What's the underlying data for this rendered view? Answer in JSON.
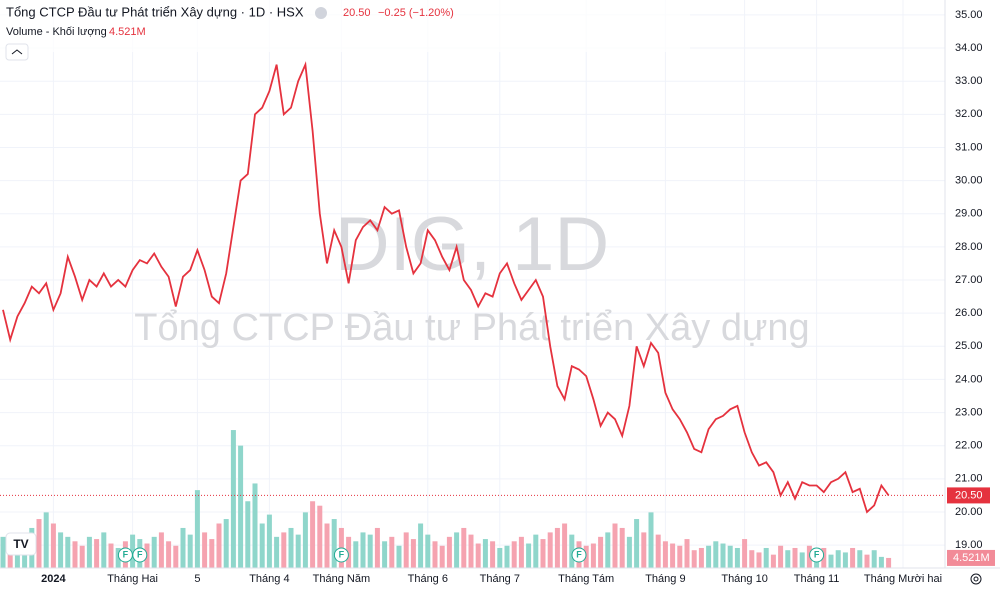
{
  "header": {
    "title": "Tổng CTCP Đầu tư Phát triển Xây dựng · 1D · HSX",
    "price": "20.50",
    "change": "−0.25 (−1.20%)",
    "volume_title": "Volume - Khối lượng",
    "last_volume": {
      "value": 4.521,
      "label": "4.521M"
    }
  },
  "watermark": {
    "symbol": "DIG, 1D",
    "name": "Tổng CTCP Đầu tư Phát triển Xây dựng"
  },
  "chart_data": {
    "type": "line",
    "color": "#e5323e",
    "grid": true,
    "ylim": [
      18.4,
      35.45
    ],
    "yticks": [
      {
        "value": 19,
        "label": "19.00"
      },
      {
        "value": 20,
        "label": "20.00"
      },
      {
        "value": 21,
        "label": "21.00"
      },
      {
        "value": 22,
        "label": "22.00"
      },
      {
        "value": 23,
        "label": "23.00"
      },
      {
        "value": 24,
        "label": "24.00"
      },
      {
        "value": 25,
        "label": "25.00"
      },
      {
        "value": 26,
        "label": "26.00"
      },
      {
        "value": 27,
        "label": "27.00"
      },
      {
        "value": 28,
        "label": "28.00"
      },
      {
        "value": 29,
        "label": "29.00"
      },
      {
        "value": 30,
        "label": "30.00"
      },
      {
        "value": 31,
        "label": "31.00"
      },
      {
        "value": 32,
        "label": "32.00"
      },
      {
        "value": 33,
        "label": "33.00"
      },
      {
        "value": 34,
        "label": "34.00"
      },
      {
        "value": 35,
        "label": "35.00"
      }
    ],
    "last_price": {
      "value": 20.5,
      "label": "20.50"
    },
    "categories": [
      null,
      null,
      null,
      null,
      null,
      null,
      null,
      "2024",
      null,
      null,
      null,
      null,
      null,
      null,
      null,
      null,
      null,
      null,
      "Tháng Hai",
      null,
      null,
      null,
      null,
      null,
      null,
      null,
      null,
      "5",
      null,
      null,
      null,
      null,
      null,
      null,
      null,
      null,
      null,
      "Tháng 4",
      null,
      null,
      null,
      null,
      null,
      null,
      null,
      null,
      null,
      "Tháng Năm",
      null,
      null,
      null,
      null,
      null,
      null,
      null,
      null,
      null,
      null,
      null,
      "Tháng 6",
      null,
      null,
      null,
      null,
      null,
      null,
      null,
      null,
      null,
      "Tháng 7",
      null,
      null,
      null,
      null,
      null,
      null,
      null,
      null,
      null,
      null,
      null,
      "Tháng Tám",
      null,
      null,
      null,
      null,
      null,
      null,
      null,
      null,
      null,
      null,
      "Tháng 9",
      null,
      null,
      null,
      null,
      null,
      null,
      null,
      null,
      null,
      null,
      "Tháng 10",
      null,
      null,
      null,
      null,
      null,
      null,
      null,
      null,
      null,
      "Tháng 11",
      null,
      null,
      null,
      null,
      null,
      null,
      null,
      null,
      null,
      null,
      null,
      "Tháng Mười hai",
      null,
      null,
      null,
      null
    ],
    "series": [
      {
        "name": "DIG",
        "color": "#e5323e",
        "values": [
          26.1,
          25.2,
          25.9,
          26.3,
          26.8,
          26.6,
          26.9,
          26.1,
          26.6,
          27.7,
          27.1,
          26.4,
          27.0,
          26.8,
          27.2,
          26.8,
          27.0,
          26.8,
          27.3,
          27.6,
          27.5,
          27.8,
          27.4,
          27.1,
          26.2,
          27.1,
          27.3,
          27.9,
          27.3,
          26.5,
          26.3,
          27.2,
          28.6,
          30.0,
          30.2,
          32.0,
          32.2,
          32.7,
          33.5,
          32.0,
          32.2,
          33.0,
          33.5,
          31.5,
          29.0,
          27.5,
          28.5,
          28.0,
          26.9,
          28.2,
          28.6,
          28.8,
          28.5,
          29.2,
          29.0,
          29.1,
          28.0,
          27.2,
          27.5,
          28.5,
          28.2,
          27.7,
          27.3,
          28.0,
          27.0,
          26.7,
          26.2,
          26.6,
          26.5,
          27.2,
          27.5,
          26.9,
          26.4,
          26.7,
          27.0,
          26.5,
          25.0,
          23.8,
          23.4,
          24.4,
          24.3,
          24.1,
          23.4,
          22.6,
          23.0,
          22.8,
          22.3,
          23.2,
          25.0,
          24.4,
          25.1,
          24.8,
          23.6,
          23.1,
          22.8,
          22.4,
          21.9,
          21.8,
          22.5,
          22.8,
          22.9,
          23.1,
          23.2,
          22.4,
          21.8,
          21.4,
          21.5,
          21.2,
          20.5,
          20.9,
          20.4,
          20.9,
          20.8,
          20.8,
          20.6,
          20.9,
          21.0,
          21.2,
          20.6,
          20.7,
          20.0,
          20.2,
          20.8,
          20.5,
          null,
          null,
          null,
          null,
          null,
          null
        ]
      }
    ],
    "volume": {
      "vlim": [
        0,
        80
      ],
      "up_color": "#8fd6cb",
      "down_color": "#f5a3b0",
      "values": [
        14,
        12,
        15,
        10,
        18,
        22,
        25,
        20,
        16,
        14,
        12,
        10,
        14,
        13,
        16,
        11,
        9,
        12,
        15,
        13,
        11,
        14,
        16,
        12,
        10,
        18,
        15,
        35,
        16,
        13,
        20,
        22,
        62,
        55,
        30,
        38,
        20,
        24,
        14,
        16,
        18,
        15,
        25,
        30,
        28,
        20,
        22,
        18,
        14,
        12,
        16,
        15,
        18,
        12,
        14,
        10,
        16,
        13,
        20,
        15,
        12,
        10,
        14,
        16,
        18,
        15,
        11,
        13,
        12,
        9,
        10,
        12,
        14,
        11,
        15,
        13,
        16,
        18,
        20,
        15,
        12,
        10,
        11,
        14,
        16,
        20,
        18,
        14,
        22,
        16,
        25,
        15,
        12,
        11,
        10,
        13,
        8,
        9,
        10,
        12,
        11,
        10,
        9,
        13,
        8,
        7,
        9,
        6,
        10,
        8,
        9,
        7,
        10,
        8,
        9,
        6,
        8,
        7,
        9,
        8,
        6,
        8,
        5,
        4.521,
        null,
        null,
        null,
        null,
        null,
        null
      ]
    },
    "events": [
      {
        "index": 17,
        "label": "F"
      },
      {
        "index": 19,
        "label": "F"
      },
      {
        "index": 47,
        "label": "F"
      },
      {
        "index": 80,
        "label": "F"
      },
      {
        "index": 113,
        "label": "F"
      }
    ]
  }
}
